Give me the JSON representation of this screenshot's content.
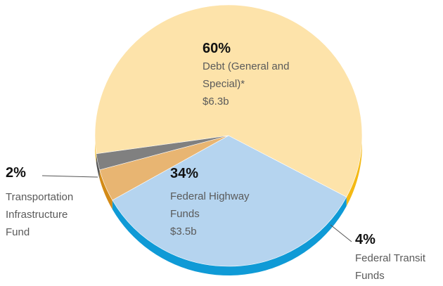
{
  "chart_data": {
    "type": "pie",
    "categories": [
      "Debt (General and Special)*",
      "Federal Highway Funds",
      "Federal Transit Funds",
      "Transportation Infrastructure Fund"
    ],
    "values": [
      60,
      34,
      4,
      2
    ],
    "value_labels": [
      "60%",
      "34%",
      "4%",
      "2%"
    ],
    "amount_labels": [
      "$6.3b",
      "$3.5b",
      null,
      null
    ],
    "colors": [
      "#fde3aa",
      "#b5d4ef",
      "#e8b572",
      "#808080"
    ],
    "side_colors": [
      "#f4b914",
      "#0f9ad6",
      "#d38a16",
      "#555555"
    ]
  }
}
